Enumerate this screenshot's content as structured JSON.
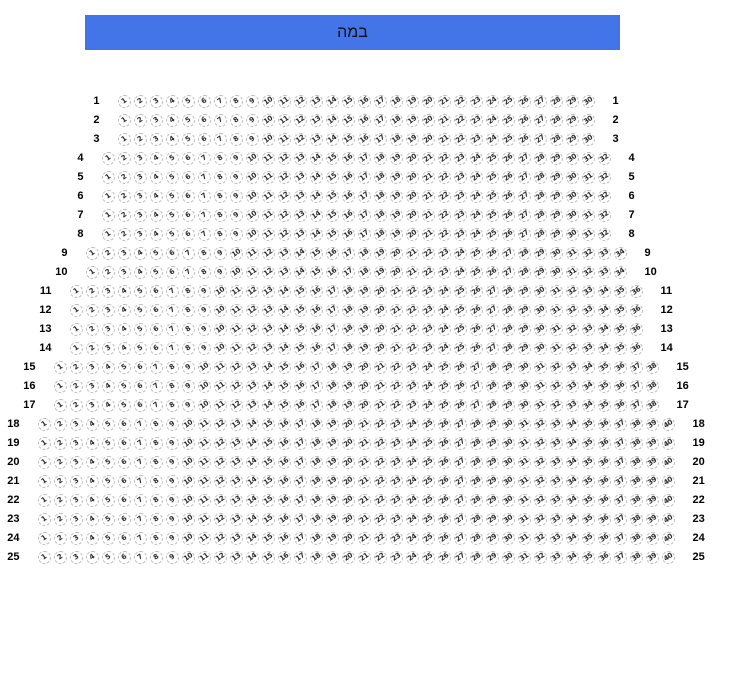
{
  "stage": {
    "label": "במה",
    "bg_color": "#4374e8",
    "text_color": "#111111"
  },
  "seatmap": {
    "seat_border_color": "#bcbcbc",
    "seat_fill_color": "#ffffff",
    "seat_number_color": "#2b2b2b",
    "row_label_color": "#000000",
    "seat_numbering": "1 to N, left to right",
    "rows": [
      {
        "label": "1",
        "seat_count": 30
      },
      {
        "label": "2",
        "seat_count": 30
      },
      {
        "label": "3",
        "seat_count": 30
      },
      {
        "label": "4",
        "seat_count": 32
      },
      {
        "label": "5",
        "seat_count": 32
      },
      {
        "label": "6",
        "seat_count": 32
      },
      {
        "label": "7",
        "seat_count": 32
      },
      {
        "label": "8",
        "seat_count": 32
      },
      {
        "label": "9",
        "seat_count": 34
      },
      {
        "label": "10",
        "seat_count": 34
      },
      {
        "label": "11",
        "seat_count": 36
      },
      {
        "label": "12",
        "seat_count": 36
      },
      {
        "label": "13",
        "seat_count": 36
      },
      {
        "label": "14",
        "seat_count": 36
      },
      {
        "label": "15",
        "seat_count": 38
      },
      {
        "label": "16",
        "seat_count": 38
      },
      {
        "label": "17",
        "seat_count": 38
      },
      {
        "label": "18",
        "seat_count": 40
      },
      {
        "label": "19",
        "seat_count": 40
      },
      {
        "label": "20",
        "seat_count": 40
      },
      {
        "label": "21",
        "seat_count": 40
      },
      {
        "label": "22",
        "seat_count": 40
      },
      {
        "label": "23",
        "seat_count": 40
      },
      {
        "label": "24",
        "seat_count": 40
      },
      {
        "label": "25",
        "seat_count": 40
      }
    ]
  }
}
